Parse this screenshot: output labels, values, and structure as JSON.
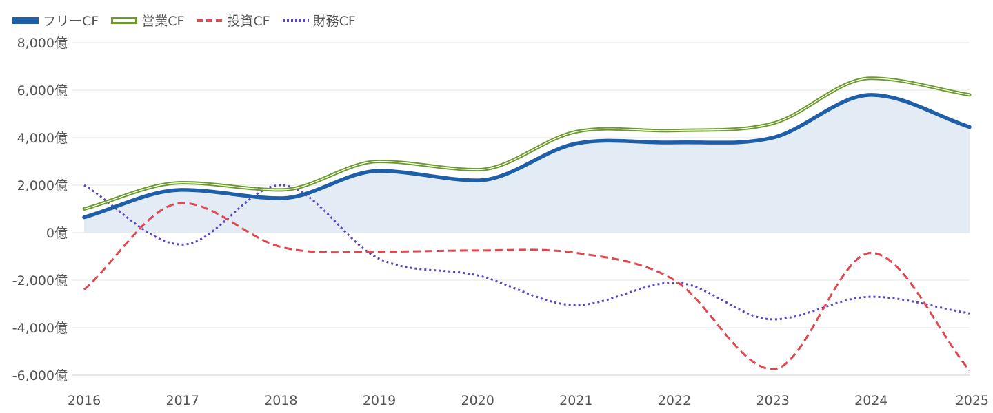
{
  "chart_data": {
    "type": "line",
    "x": [
      "2016",
      "2017",
      "2018",
      "2019",
      "2020",
      "2021",
      "2022",
      "2023",
      "2024",
      "2025"
    ],
    "y_ticks": [
      "8,000億",
      "6,000億",
      "4,000億",
      "2,000億",
      "0億",
      "-2,000億",
      "-4,000億",
      "-6,000億"
    ],
    "y_tick_values": [
      8000,
      6000,
      4000,
      2000,
      0,
      -2000,
      -4000,
      -6000
    ],
    "ylim": [
      -6000,
      8000
    ],
    "y_unit": "億",
    "grid": true,
    "legend_position": "top-left",
    "series": [
      {
        "name": "フリーCF",
        "style": "solid-thick-area",
        "color": "#1f5fa8",
        "fill": "#e3ecf5",
        "values": [
          650,
          1800,
          1450,
          2600,
          2200,
          3750,
          3800,
          4000,
          5800,
          4450
        ]
      },
      {
        "name": "営業CF",
        "style": "double-line",
        "color": "#6a9a2a",
        "values": [
          1000,
          2100,
          1800,
          3000,
          2650,
          4250,
          4300,
          4600,
          6500,
          5800
        ]
      },
      {
        "name": "投資CF",
        "style": "dashed",
        "color": "#e0484f",
        "values": [
          -2400,
          1250,
          -600,
          -800,
          -750,
          -850,
          -2000,
          -5750,
          -850,
          -5800
        ]
      },
      {
        "name": "財務CF",
        "style": "dotted",
        "color": "#5a45c4",
        "values": [
          2000,
          -500,
          2000,
          -1100,
          -1800,
          -3050,
          -2100,
          -3650,
          -2700,
          -3400
        ]
      }
    ]
  }
}
